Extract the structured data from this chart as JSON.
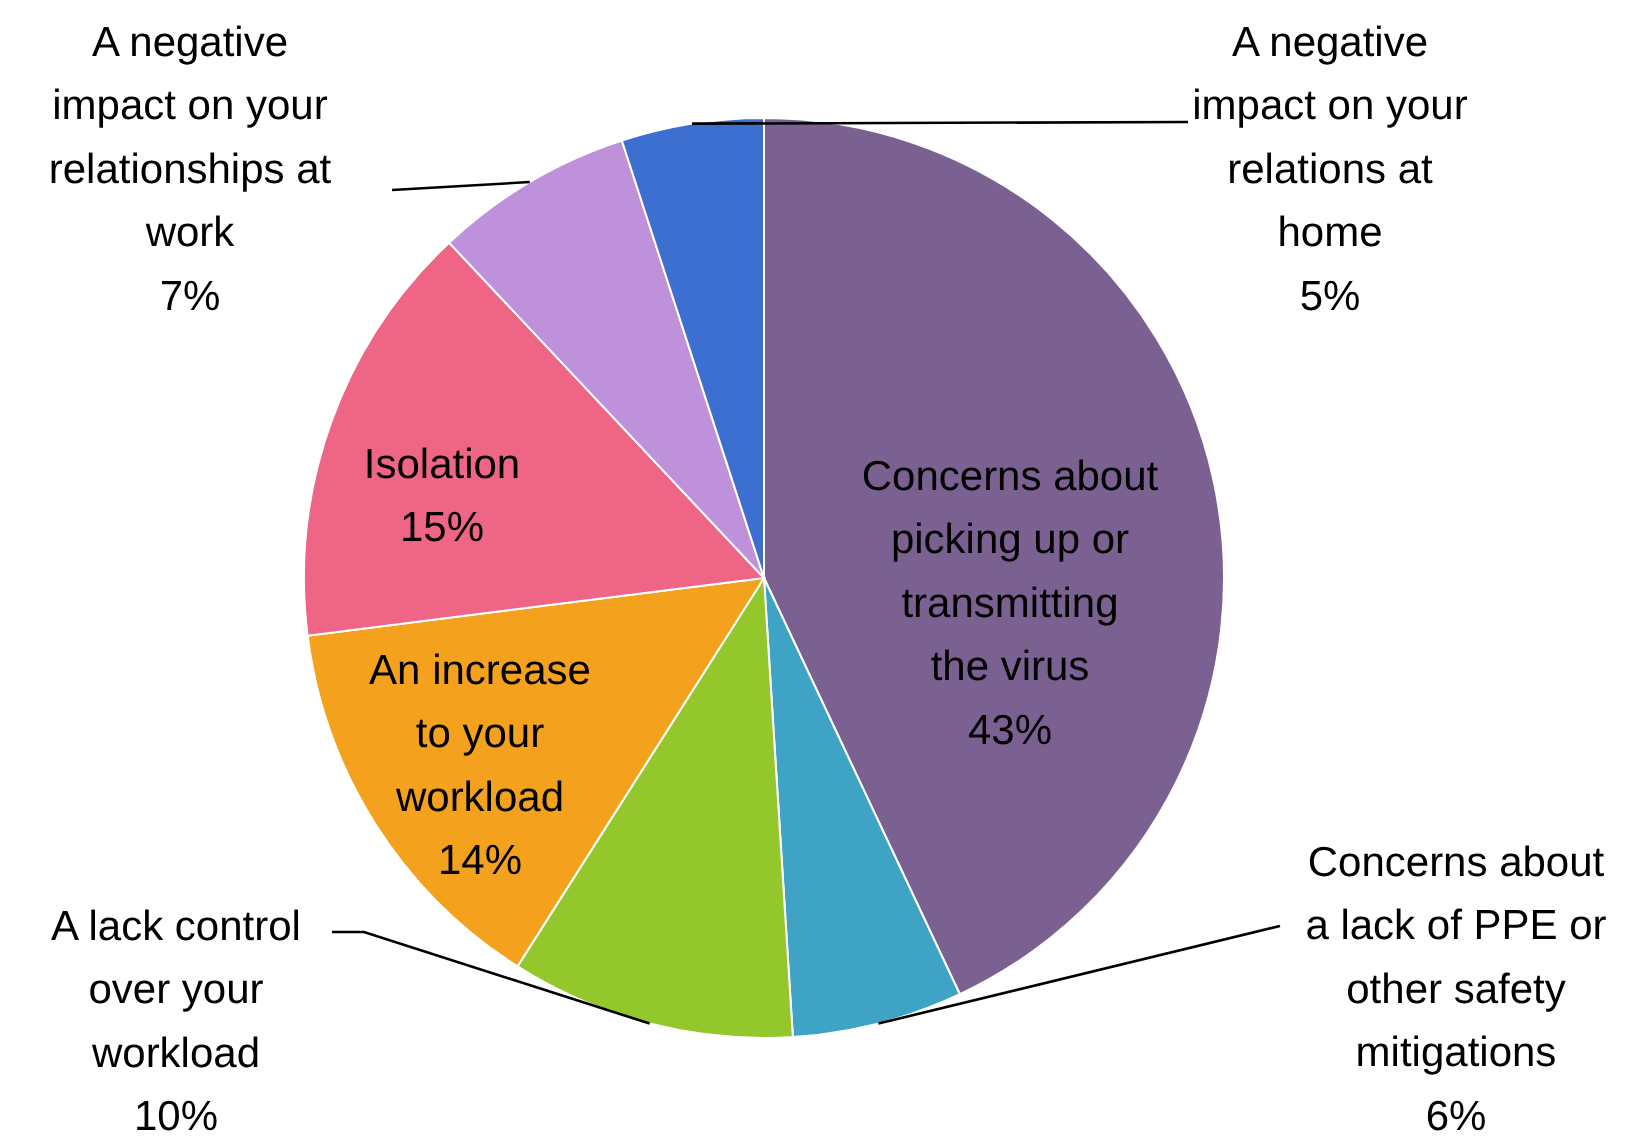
{
  "chart_data": {
    "type": "pie",
    "categories": [
      "Concerns about\npicking up or\ntransmitting\nthe virus",
      "Concerns about\na lack of PPE or\nother safety\nmitigations",
      "A lack control\nover your\nworkload",
      "An increase\nto your\nworkload",
      "Isolation",
      "A negative\nimpact on your\nrelationships at\nwork",
      "A negative\nimpact on your\nrelations at\nhome"
    ],
    "values": [
      43,
      6,
      10,
      14,
      15,
      7,
      5
    ],
    "value_labels": [
      "43%",
      "6%",
      "10%",
      "14%",
      "15%",
      "7%",
      "5%"
    ],
    "colors": [
      "#7b6191",
      "#3ea3c4",
      "#93c72b",
      "#f4a21e",
      "#ef6585",
      "#bf91db",
      "#3c6fcf"
    ]
  }
}
